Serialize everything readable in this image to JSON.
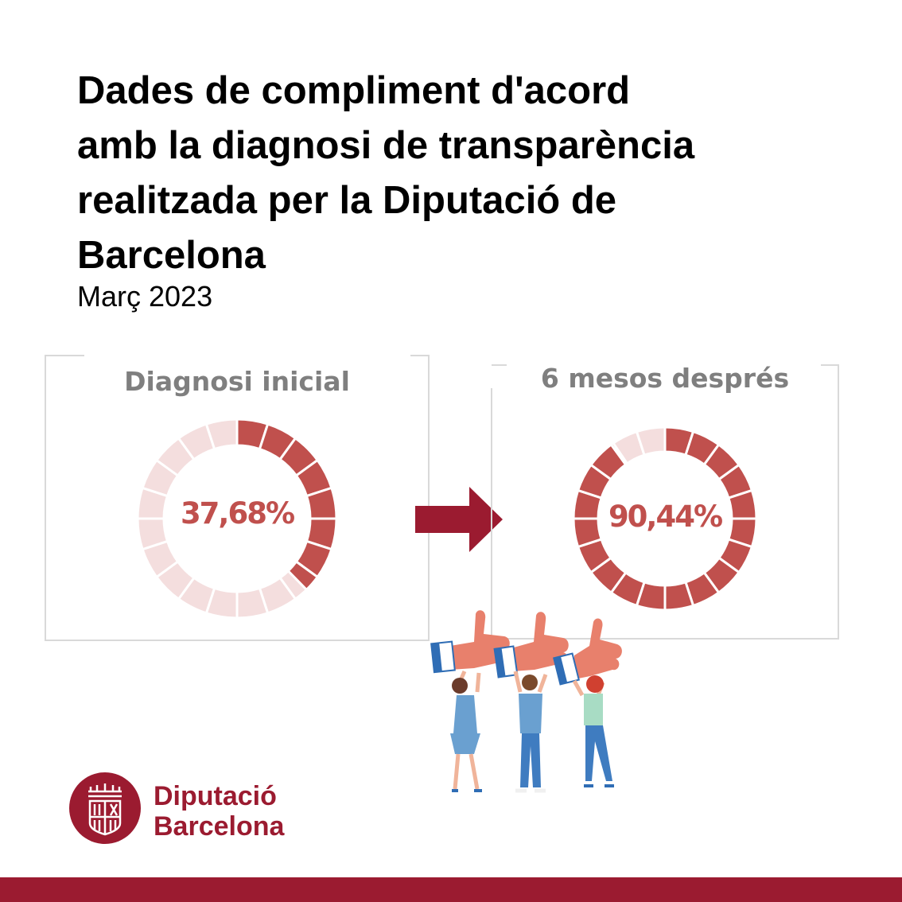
{
  "header": {
    "title_lines": [
      "Dades de compliment d'acord",
      "amb la diagnosi de transparència",
      "realitzada per la Diputació de",
      "Barcelona"
    ],
    "subtitle": "Març 2023"
  },
  "chart_data": [
    {
      "type": "pie",
      "title": "Diagnosi inicial",
      "values": [
        37.68,
        62.32
      ],
      "center_label": "37,68%",
      "segments": 20,
      "colors": {
        "filled": "#c0504d",
        "empty": "#f4dede"
      }
    },
    {
      "type": "pie",
      "title": "6 mesos després",
      "values": [
        90.44,
        9.56
      ],
      "center_label": "90,44%",
      "segments": 20,
      "colors": {
        "filled": "#c0504d",
        "empty": "#f4dede"
      }
    }
  ],
  "arrow": {
    "icon": "arrow-right-icon",
    "color": "#9b1b30"
  },
  "illustration": {
    "icon": "people-thumbs-up-illustration"
  },
  "brand": {
    "line1": "Diputació",
    "line2": "Barcelona",
    "color": "#9b1b30"
  },
  "footer": {
    "color": "#9b1b30"
  }
}
